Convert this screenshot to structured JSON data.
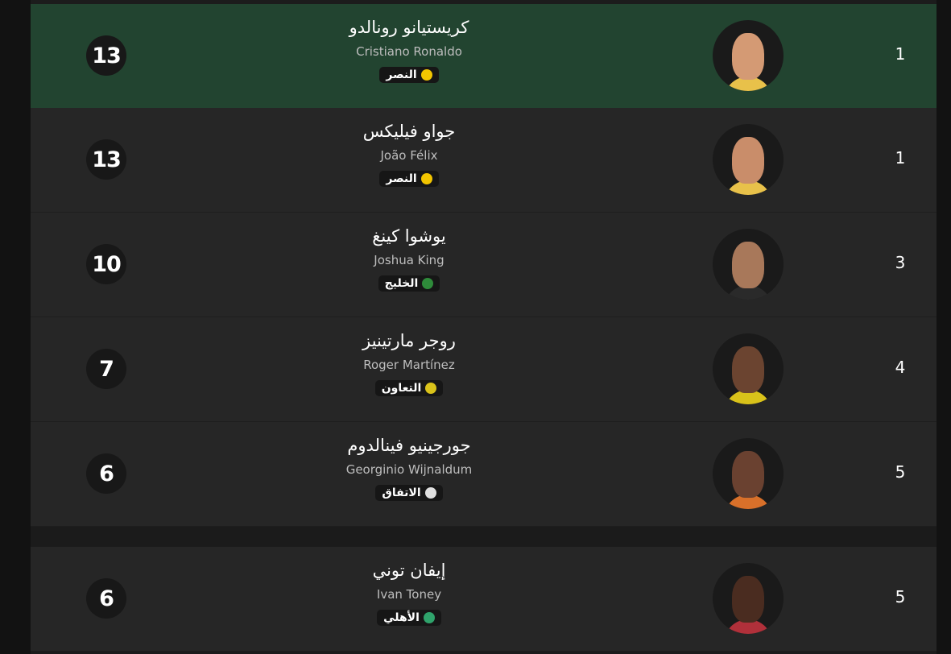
{
  "players": [
    {
      "rank": "1",
      "goals": "13",
      "name_ar": "كريستيانو رونالدو",
      "name_en": "Cristiano Ronaldo",
      "club": "النصر",
      "club_icon": "al-nassr-logo-icon",
      "club_color": "#f2c500",
      "skin": "#d49a74",
      "kit": "#e8c14a",
      "highlighted": true
    },
    {
      "rank": "1",
      "goals": "13",
      "name_ar": "جواو فيليكس",
      "name_en": "João Félix",
      "club": "النصر",
      "club_icon": "al-nassr-logo-icon",
      "club_color": "#f2c500",
      "skin": "#c98d6a",
      "kit": "#e8c14a",
      "highlighted": false
    },
    {
      "rank": "3",
      "goals": "10",
      "name_ar": "يوشوا كينغ",
      "name_en": "Joshua King",
      "club": "الخليج",
      "club_icon": "al-khaleej-logo-icon",
      "club_color": "#2e8b3a",
      "skin": "#a8785a",
      "kit": "#2a2a2a",
      "highlighted": false
    },
    {
      "rank": "4",
      "goals": "7",
      "name_ar": "روجر مارتينيز",
      "name_en": "Roger Martínez",
      "club": "التعاون",
      "club_icon": "al-taawoun-logo-icon",
      "club_color": "#d9c21a",
      "skin": "#6b4430",
      "kit": "#d9c21a",
      "highlighted": false
    },
    {
      "rank": "5",
      "goals": "6",
      "name_ar": "جورجينيو فينالدوم",
      "name_en": "Georginio Wijnaldum",
      "club": "الاتفاق",
      "club_icon": "al-ettifaq-logo-icon",
      "club_color": "#e0e0e0",
      "skin": "#6a4130",
      "kit": "#d8702a",
      "highlighted": false
    },
    {
      "rank": "5",
      "goals": "6",
      "name_ar": "إيفان توني",
      "name_en": "Ivan Toney",
      "club": "الأهلي",
      "club_icon": "al-ahli-logo-icon",
      "club_color": "#2fa36b",
      "skin": "#4a2c20",
      "kit": "#b0303a",
      "highlighted": false
    }
  ],
  "colors": {
    "highlight_row": "#224430",
    "row": "#262626"
  }
}
